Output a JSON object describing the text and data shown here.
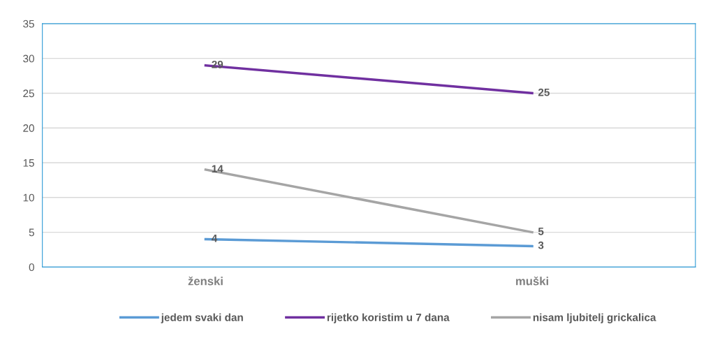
{
  "chart_data": {
    "type": "line",
    "categories": [
      "ženski",
      "muški"
    ],
    "series": [
      {
        "name": "jedem svaki dan",
        "color": "#5b9bd5",
        "values": [
          4,
          3
        ]
      },
      {
        "name": "rijetko koristim u 7 dana",
        "color": "#7030a0",
        "values": [
          29,
          25
        ]
      },
      {
        "name": "nisam ljubitelj grickalica",
        "color": "#a5a5a5",
        "values": [
          14,
          5
        ]
      }
    ],
    "ylim": [
      0,
      35
    ],
    "yticks": [
      0,
      5,
      10,
      15,
      20,
      25,
      30,
      35
    ],
    "grid": "y",
    "legend": "bottom",
    "data_labels": true,
    "marker": "none",
    "line_style": "solid"
  }
}
